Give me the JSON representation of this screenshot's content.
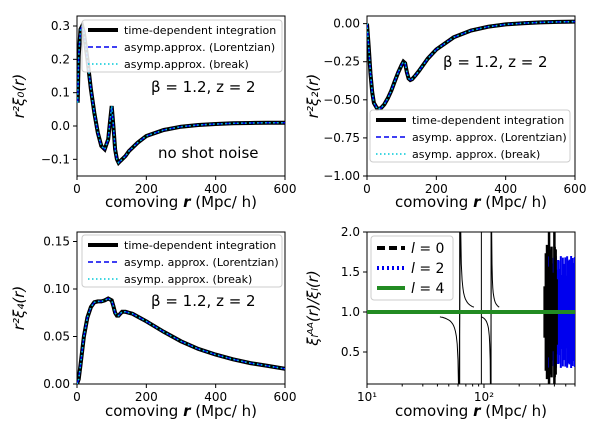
{
  "chart_data": [
    {
      "type": "line",
      "panel": "top-left",
      "xlabel_pre": "comoving ",
      "xlabel_var": "r",
      "xlabel_post": " (Mpc/ h)",
      "ylabel": "r²ξ₀(r)",
      "xlim": [
        0,
        600
      ],
      "ylim": [
        -0.15,
        0.33
      ],
      "xticks": [
        "0",
        "200",
        "400",
        "600"
      ],
      "xtick_values": [
        0,
        200,
        400,
        600
      ],
      "yticks": [
        "−0.1",
        "0.0",
        "0.1",
        "0.2",
        "0.3"
      ],
      "ytick_values": [
        -0.1,
        0.0,
        0.1,
        0.2,
        0.3
      ],
      "legend": [
        "time-dependent integration",
        "asymp.approx. (Lorentzian)",
        "asymp.approx. (break)"
      ],
      "annotation_param": "β = 1.2,    z = 2",
      "annotation_extra": "no shot noise",
      "x": [
        2,
        5,
        10,
        15,
        20,
        30,
        40,
        50,
        60,
        70,
        80,
        90,
        95,
        100,
        105,
        110,
        115,
        120,
        125,
        130,
        140,
        150,
        175,
        200,
        250,
        300,
        350,
        400,
        450,
        500,
        550,
        600
      ],
      "series": [
        {
          "values": [
            0.07,
            0.21,
            0.29,
            0.3,
            0.28,
            0.2,
            0.11,
            0.04,
            -0.02,
            -0.06,
            -0.07,
            -0.04,
            0.01,
            0.06,
            0.0,
            -0.07,
            -0.1,
            -0.11,
            -0.105,
            -0.1,
            -0.09,
            -0.075,
            -0.05,
            -0.03,
            -0.012,
            -0.002,
            0.003,
            0.006,
            0.008,
            0.009,
            0.01,
            0.01
          ]
        }
      ]
    },
    {
      "type": "line",
      "panel": "top-right",
      "xlabel_pre": "comoving ",
      "xlabel_var": "r",
      "xlabel_post": " (Mpc/ h)",
      "ylabel": "r²ξ₂(r)",
      "xlim": [
        0,
        600
      ],
      "ylim": [
        -1.0,
        0.05
      ],
      "xticks": [
        "0",
        "200",
        "400",
        "600"
      ],
      "xtick_values": [
        0,
        200,
        400,
        600
      ],
      "yticks": [
        "−1.00",
        "−0.75",
        "−0.50",
        "−0.25",
        "0.00"
      ],
      "ytick_values": [
        -1.0,
        -0.75,
        -0.5,
        -0.25,
        0.0
      ],
      "legend": [
        "time-dependent integration",
        "asymp. approx. (Lorentzian)",
        "asymp. approx. (break)"
      ],
      "annotation_param": "β = 1.2,    z = 2",
      "x": [
        0,
        5,
        10,
        15,
        20,
        30,
        40,
        50,
        60,
        70,
        80,
        90,
        100,
        105,
        110,
        115,
        120,
        125,
        130,
        140,
        150,
        175,
        200,
        250,
        300,
        350,
        400,
        450,
        500,
        550,
        600
      ],
      "series": [
        {
          "values": [
            0.0,
            -0.15,
            -0.33,
            -0.45,
            -0.52,
            -0.56,
            -0.555,
            -0.53,
            -0.49,
            -0.44,
            -0.38,
            -0.32,
            -0.27,
            -0.25,
            -0.26,
            -0.32,
            -0.36,
            -0.37,
            -0.365,
            -0.34,
            -0.31,
            -0.23,
            -0.17,
            -0.09,
            -0.045,
            -0.02,
            -0.005,
            0.003,
            0.008,
            0.011,
            0.013
          ]
        }
      ]
    },
    {
      "type": "line",
      "panel": "bottom-left",
      "xlabel_pre": "comoving ",
      "xlabel_var": "r",
      "xlabel_post": " (Mpc/ h)",
      "ylabel": "r²ξ₄(r)",
      "xlim": [
        0,
        600
      ],
      "ylim": [
        0.0,
        0.16
      ],
      "xticks": [
        "0",
        "200",
        "400",
        "600"
      ],
      "xtick_values": [
        0,
        200,
        400,
        600
      ],
      "yticks": [
        "0.00",
        "0.05",
        "0.10",
        "0.15"
      ],
      "ytick_values": [
        0.0,
        0.05,
        0.1,
        0.15
      ],
      "legend": [
        "time-dependent integration",
        "asymp. approx. (Lorentzian)",
        "asymp. approx. (break)"
      ],
      "annotation_param": "β = 1.2,    z = 2",
      "x": [
        0,
        5,
        10,
        20,
        30,
        40,
        50,
        60,
        70,
        80,
        90,
        100,
        105,
        110,
        115,
        120,
        125,
        130,
        140,
        150,
        160,
        175,
        200,
        250,
        300,
        350,
        400,
        450,
        500,
        550,
        600
      ],
      "series": [
        {
          "values": [
            0.0,
            0.005,
            0.02,
            0.05,
            0.07,
            0.081,
            0.086,
            0.087,
            0.087,
            0.088,
            0.09,
            0.088,
            0.082,
            0.075,
            0.072,
            0.072,
            0.074,
            0.076,
            0.076,
            0.075,
            0.074,
            0.071,
            0.066,
            0.055,
            0.045,
            0.037,
            0.031,
            0.026,
            0.022,
            0.019,
            0.016
          ]
        }
      ]
    },
    {
      "type": "line",
      "panel": "bottom-right",
      "xscale": "log",
      "xlabel_pre": "comoving ",
      "xlabel_var": "r",
      "xlabel_post": " (Mpc/ h)",
      "ylabel": "ξₗᴬᴬ(r)/ξₗ(r)",
      "xlim": [
        10,
        600
      ],
      "ylim": [
        0.1,
        2.0
      ],
      "xticks": [
        "10¹",
        "10²"
      ],
      "xtick_values": [
        10,
        100
      ],
      "yticks": [
        "0.5",
        "1.0",
        "1.5",
        "2.0"
      ],
      "ytick_values": [
        0.5,
        1.0,
        1.5,
        2.0
      ],
      "legend": [
        "l = 0",
        "l = 2",
        "l = 4"
      ],
      "legend_labels": [
        {
          "sym": "l",
          "rest": " = 0"
        },
        {
          "sym": "l",
          "rest": " = 2"
        },
        {
          "sym": "l",
          "rest": " = 4"
        }
      ],
      "spike_x": [
        62,
        95,
        115,
        360,
        400
      ],
      "series": [
        {
          "name": "l = 0",
          "color": "#000000",
          "value_flat": 1.0
        },
        {
          "name": "l = 2",
          "color": "#0000ee",
          "value_flat": 1.0
        },
        {
          "name": "l = 4",
          "color": "#228B22",
          "value_flat": 1.0
        }
      ]
    }
  ],
  "colors": {
    "black": "#000000",
    "blue": "#0000ee",
    "cyan": "#00c8d7",
    "green": "#228B22"
  }
}
